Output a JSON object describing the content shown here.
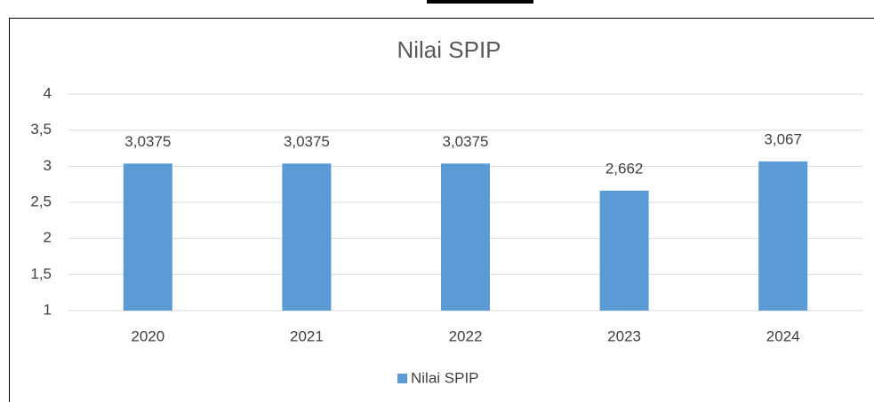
{
  "chart_data": {
    "type": "bar",
    "title": "Nilai SPIP",
    "categories": [
      "2020",
      "2021",
      "2022",
      "2023",
      "2024"
    ],
    "series": [
      {
        "name": "Nilai SPIP",
        "color": "#5b9bd5",
        "values": [
          3.0375,
          3.0375,
          3.0375,
          2.662,
          3.067
        ],
        "value_labels": [
          "3,0375",
          "3,0375",
          "3,0375",
          "2,662",
          "3,067"
        ]
      }
    ],
    "ylim": [
      1,
      4
    ],
    "yticks": [
      1,
      {
        "value": 1.5,
        "label": "1,5"
      },
      2,
      {
        "value": 2.5,
        "label": "2,5"
      },
      3,
      {
        "value": 3.5,
        "label": "3,5"
      },
      4
    ],
    "grid": true,
    "legend": "bottom"
  }
}
